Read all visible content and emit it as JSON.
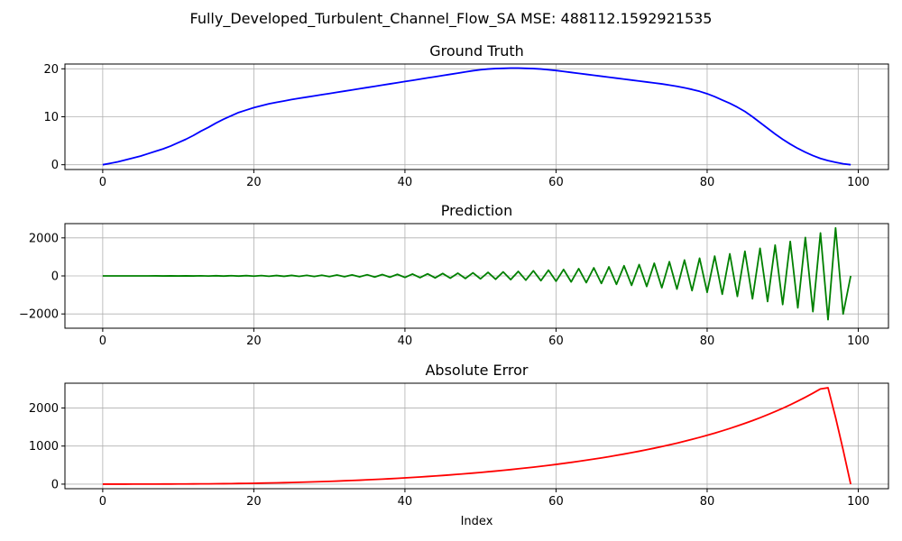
{
  "figure": {
    "suptitle": "Fully_Developed_Turbulent_Channel_Flow_SA MSE: 488112.1592921535"
  },
  "chart_data": [
    {
      "type": "line",
      "title": "Ground Truth",
      "xlabel": "",
      "ylabel": "",
      "xlim": [
        -5,
        104
      ],
      "ylim": [
        -1,
        21
      ],
      "xticks": [
        0,
        20,
        40,
        60,
        80,
        100
      ],
      "yticks": [
        0,
        10,
        20
      ],
      "ytick_labels": [
        "0",
        "10",
        "20"
      ],
      "grid": true,
      "color": "#0000ff",
      "series": [
        {
          "x_start": 0,
          "x_step": 1,
          "values": [
            0,
            0.3,
            0.6,
            1.0,
            1.4,
            1.8,
            2.3,
            2.8,
            3.3,
            3.9,
            4.6,
            5.3,
            6.1,
            7.0,
            7.8,
            8.7,
            9.5,
            10.2,
            10.9,
            11.4,
            11.9,
            12.3,
            12.7,
            13.0,
            13.3,
            13.6,
            13.85,
            14.1,
            14.35,
            14.6,
            14.85,
            15.1,
            15.35,
            15.6,
            15.85,
            16.1,
            16.35,
            16.6,
            16.85,
            17.1,
            17.35,
            17.6,
            17.85,
            18.1,
            18.35,
            18.6,
            18.85,
            19.1,
            19.35,
            19.6,
            19.8,
            19.95,
            20.05,
            20.1,
            20.15,
            20.15,
            20.1,
            20.05,
            19.95,
            19.8,
            19.65,
            19.45,
            19.25,
            19.05,
            18.85,
            18.65,
            18.45,
            18.25,
            18.05,
            17.85,
            17.65,
            17.45,
            17.25,
            17.05,
            16.85,
            16.6,
            16.35,
            16.05,
            15.7,
            15.3,
            14.8,
            14.2,
            13.5,
            12.8,
            12.0,
            11.1,
            10.0,
            8.8,
            7.6,
            6.4,
            5.3,
            4.3,
            3.4,
            2.6,
            1.9,
            1.3,
            0.85,
            0.5,
            0.2,
            0
          ]
        }
      ]
    },
    {
      "type": "line",
      "title": "Prediction",
      "xlabel": "",
      "ylabel": "",
      "xlim": [
        -5,
        104
      ],
      "ylim": [
        -2750,
        2750
      ],
      "xticks": [
        0,
        20,
        40,
        60,
        80,
        100
      ],
      "yticks": [
        -2000,
        0,
        2000
      ],
      "ytick_labels": [
        "−2000",
        "0",
        "2000"
      ],
      "grid": true,
      "color": "#008000",
      "series": [
        {
          "x_start": 0,
          "x_step": 1,
          "values": [
            0,
            0,
            0,
            1,
            0,
            1,
            -1,
            2,
            -2,
            3,
            -3,
            4,
            -4,
            6,
            -6,
            9,
            -8,
            11,
            -10,
            14,
            -13,
            17,
            -16,
            21,
            -20,
            26,
            -24,
            32,
            -29,
            38,
            -35,
            45,
            -42,
            53,
            -50,
            62,
            -58,
            73,
            -67,
            84,
            -78,
            97,
            -90,
            111,
            -103,
            127,
            -118,
            145,
            -135,
            164,
            -154,
            186,
            -174,
            211,
            -197,
            238,
            -222,
            268,
            -250,
            302,
            -281,
            339,
            -315,
            380,
            -353,
            426,
            -396,
            477,
            -443,
            534,
            -496,
            597,
            -554,
            667,
            -620,
            746,
            -693,
            833,
            -774,
            931,
            -864,
            1040,
            -966,
            1162,
            -1079,
            1298,
            -1205,
            1450,
            -1346,
            1620,
            -1503,
            1810,
            -1679,
            2022,
            -1875,
            2258,
            -2300,
            2522,
            -2000,
            0
          ]
        }
      ]
    },
    {
      "type": "line",
      "title": "Absolute Error",
      "xlabel": "Index",
      "ylabel": "",
      "xlim": [
        -5,
        104
      ],
      "ylim": [
        -120,
        2650
      ],
      "xticks": [
        0,
        20,
        40,
        60,
        80,
        100
      ],
      "yticks": [
        0,
        1000,
        2000
      ],
      "ytick_labels": [
        "0",
        "1000",
        "2000"
      ],
      "grid": true,
      "color": "#ff0000",
      "series": [
        {
          "x_start": 0,
          "x_step": 1,
          "values": [
            0,
            0,
            0,
            0,
            1,
            1,
            2,
            2,
            3,
            3,
            4,
            5,
            6,
            7,
            8,
            10,
            12,
            14,
            17,
            19,
            22,
            26,
            30,
            34,
            38,
            43,
            48,
            54,
            60,
            66,
            73,
            80,
            88,
            96,
            104,
            113,
            122,
            132,
            142,
            153,
            164,
            176,
            188,
            201,
            214,
            228,
            243,
            258,
            274,
            290,
            307,
            325,
            343,
            362,
            382,
            403,
            424,
            446,
            469,
            493,
            518,
            544,
            571,
            599,
            628,
            658,
            689,
            721,
            755,
            790,
            826,
            864,
            903,
            944,
            987,
            1031,
            1077,
            1126,
            1176,
            1228,
            1283,
            1340,
            1400,
            1462,
            1528,
            1596,
            1668,
            1743,
            1822,
            1905,
            1992,
            2084,
            2180,
            2281,
            2388,
            2500,
            2530,
            1750,
            900,
            0
          ]
        }
      ]
    }
  ]
}
